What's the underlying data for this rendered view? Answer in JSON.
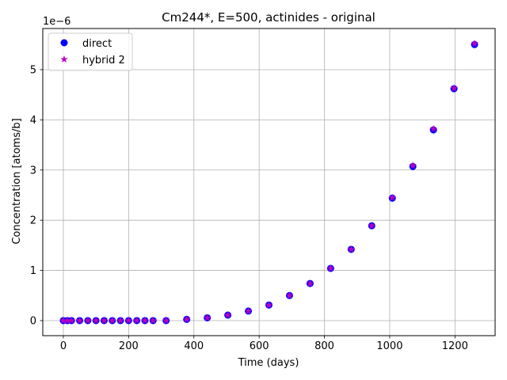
{
  "chart_data": {
    "type": "scatter",
    "title": "Cm244*, E=500, actinides - original",
    "xlabel": "Time (days)",
    "ylabel": "Concentration [atoms/b]",
    "y_offset_label": "1e−6",
    "xlim": [
      -63,
      1323
    ],
    "ylim": [
      -3e-07,
      5.82e-06
    ],
    "xticks": [
      0,
      200,
      400,
      600,
      800,
      1000,
      1200
    ],
    "xtick_labels": [
      "0",
      "200",
      "400",
      "600",
      "800",
      "1000",
      "1200"
    ],
    "yticks": [
      0,
      1e-06,
      2e-06,
      3e-06,
      4e-06,
      5e-06
    ],
    "ytick_labels": [
      "0",
      "1",
      "2",
      "3",
      "4",
      "5"
    ],
    "grid": true,
    "legend_location": "upper left",
    "series": [
      {
        "name": "direct",
        "marker": "circle",
        "color": "#0000ff",
        "x": [
          0,
          12.5,
          25,
          50,
          75,
          100,
          125,
          150,
          175,
          200,
          225,
          250,
          275,
          315,
          378,
          441,
          504,
          567,
          630,
          693,
          756,
          819,
          882,
          945,
          1008,
          1071,
          1134,
          1197,
          1260
        ],
        "y": [
          0,
          0,
          0,
          0,
          0,
          0,
          0,
          0,
          0,
          0,
          0,
          0,
          0,
          0,
          2.5e-08,
          5.5e-08,
          1.1e-07,
          1.9e-07,
          3.1e-07,
          5e-07,
          7.4e-07,
          1.04e-06,
          1.42e-06,
          1.89e-06,
          2.44e-06,
          3.07e-06,
          3.8e-06,
          4.62e-06,
          5.5e-06
        ]
      },
      {
        "name": "hybrid 2",
        "marker": "star",
        "color": "#bf00bf",
        "x": [
          0,
          12.5,
          25,
          50,
          75,
          100,
          125,
          150,
          175,
          200,
          225,
          250,
          275,
          315,
          378,
          441,
          504,
          567,
          630,
          693,
          756,
          819,
          882,
          945,
          1008,
          1071,
          1134,
          1197,
          1260
        ],
        "y": [
          0,
          0,
          0,
          0,
          0,
          0,
          0,
          0,
          0,
          0,
          0,
          0,
          0,
          0,
          2.5e-08,
          5.5e-08,
          1.1e-07,
          1.9e-07,
          3.1e-07,
          5e-07,
          7.4e-07,
          1.04e-06,
          1.42e-06,
          1.89e-06,
          2.45e-06,
          3.09e-06,
          3.82e-06,
          4.63e-06,
          5.52e-06
        ]
      }
    ]
  }
}
